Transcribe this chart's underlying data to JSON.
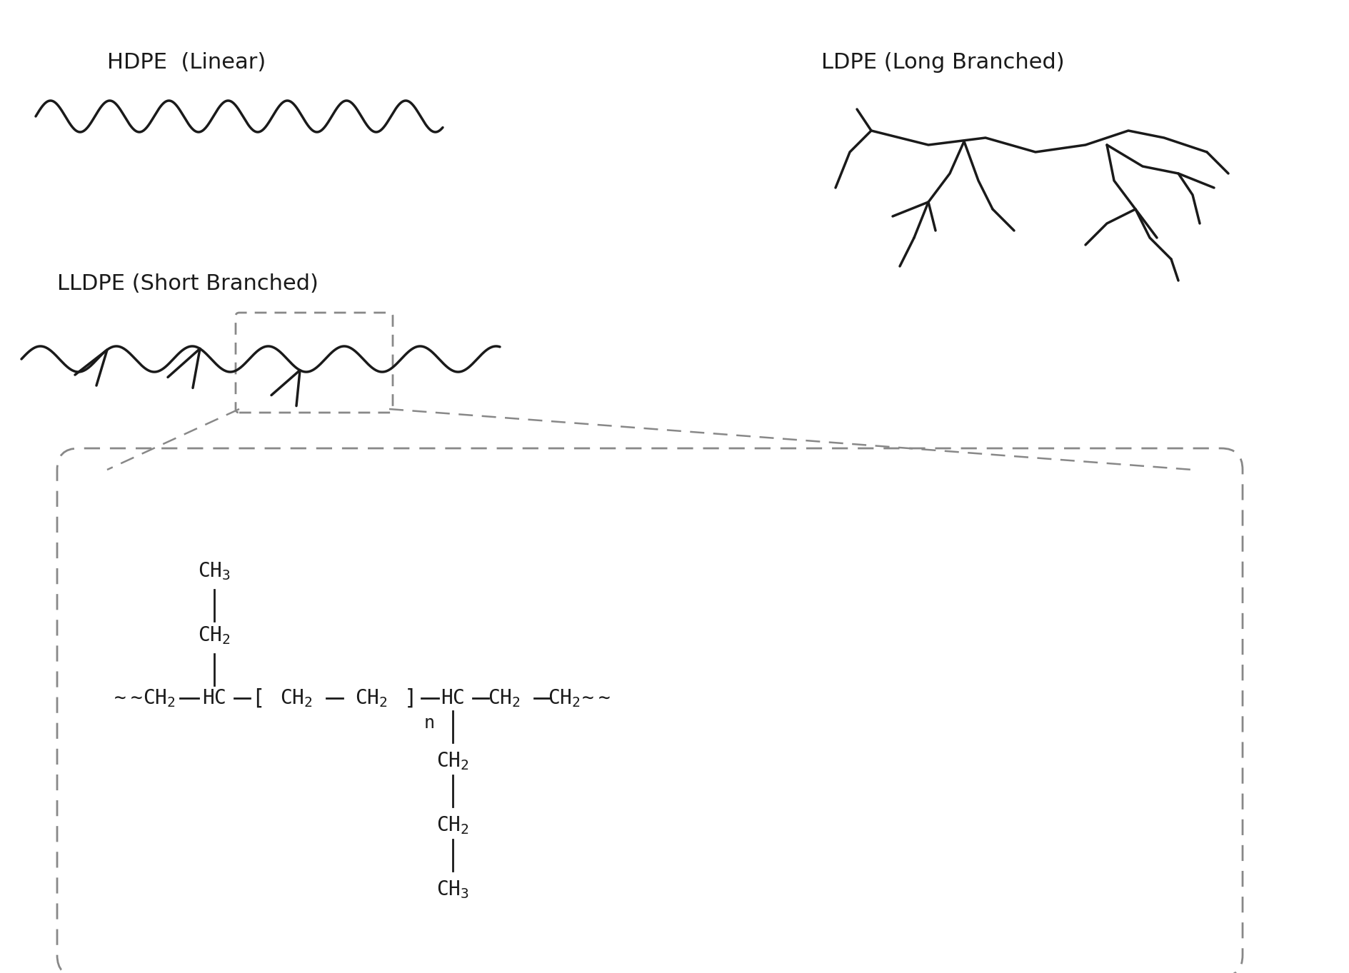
{
  "bg_color": "#ffffff",
  "line_color": "#1a1a1a",
  "text_color": "#1a1a1a",
  "chem_text_color": "#1a1a1a",
  "dashed_box_color": "#888888",
  "labels": {
    "hdpe": "HDPE  (Linear)",
    "lldpe": "LLDPE (Short Branched)",
    "ldpe": "LDPE (Long Branched)"
  },
  "label_fontsize": 22,
  "chem_fontsize": 18
}
